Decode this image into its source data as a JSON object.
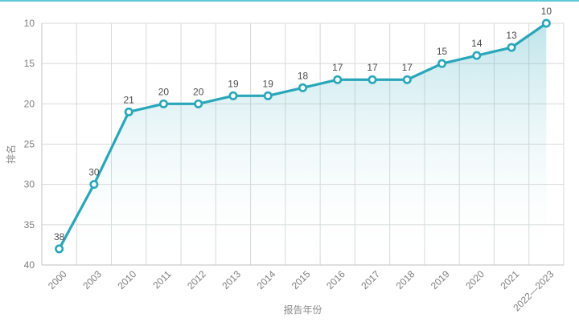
{
  "page": {
    "background": "#ffffff",
    "top_accent_color": "#5fcad7"
  },
  "chart_data": {
    "type": "line",
    "area_fill": true,
    "title": "",
    "xlabel": "报告年份",
    "ylabel": "排名",
    "categories": [
      "2000",
      "2003",
      "2010",
      "2011",
      "2012",
      "2013",
      "2014",
      "2015",
      "2016",
      "2017",
      "2018",
      "2019",
      "2020",
      "2021",
      "2022—2023"
    ],
    "values": [
      38,
      30,
      21,
      20,
      20,
      19,
      19,
      18,
      17,
      17,
      17,
      15,
      14,
      13,
      10
    ],
    "y_ticks": [
      10,
      15,
      20,
      25,
      30,
      35,
      40
    ],
    "ylim": [
      10,
      40
    ],
    "y_axis_inverted": true,
    "grid": true,
    "legend": null,
    "data_labels_shown": true,
    "colors": {
      "line": "#28a6ba",
      "marker_fill": "#ffffff",
      "marker_stroke": "#28a6ba",
      "area_top": "#28a6ba",
      "gridline": "#d8d8d8",
      "axis_line": "#c2c2c2",
      "tick_label": "#7d7d7d",
      "data_label": "#4c4c4c",
      "axis_title": "#8a8a8a"
    }
  }
}
